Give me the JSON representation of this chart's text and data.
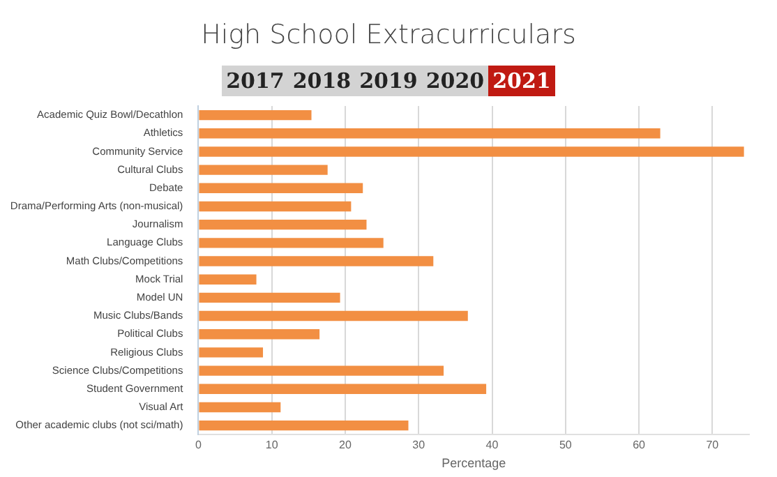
{
  "chart_data": {
    "type": "bar",
    "orientation": "horizontal",
    "title": "High School Extracurriculars",
    "annotations": [
      "2017",
      "2018",
      "2019",
      "2020",
      "2021"
    ],
    "categories": [
      "Academic Quiz Bowl/Decathlon",
      "Athletics",
      "Community Service",
      "Cultural Clubs",
      "Debate",
      "Drama/Performing Arts (non-musical)",
      "Journalism",
      "Language Clubs",
      "Math Clubs/Competitions",
      "Mock Trial",
      "Model UN",
      "Music Clubs/Bands",
      "Political Clubs",
      "Religious Clubs",
      "Science Clubs/Competitions",
      "Student Government",
      "Visual Art",
      "Other academic clubs (not sci/math)"
    ],
    "values": [
      15.4,
      62.9,
      74.3,
      17.6,
      22.4,
      20.8,
      22.9,
      25.2,
      32.0,
      7.9,
      19.3,
      36.7,
      16.5,
      8.8,
      33.4,
      39.2,
      11.2,
      28.6
    ],
    "color": "#f28f43",
    "xlabel": "Percentage",
    "xlim": [
      0,
      75
    ],
    "xticks": [
      0,
      10,
      20,
      30,
      40,
      50,
      60,
      70
    ],
    "grid": "x",
    "legend": false
  }
}
